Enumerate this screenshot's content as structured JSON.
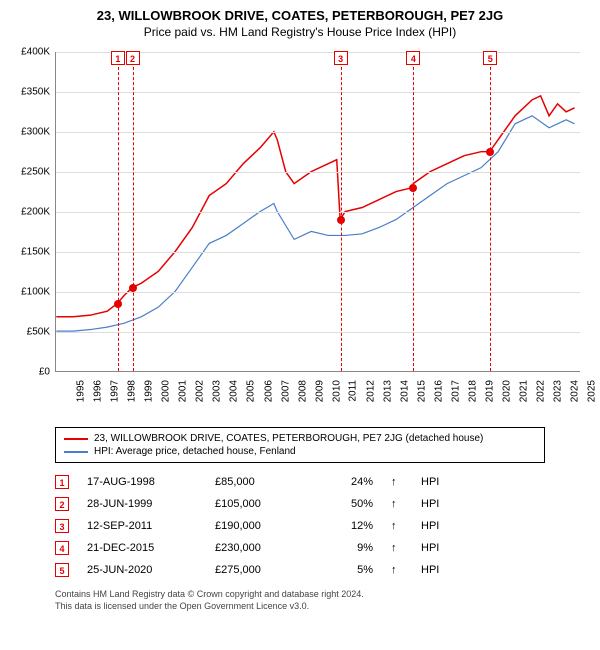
{
  "title": "23, WILLOWBROOK DRIVE, COATES, PETERBOROUGH, PE7 2JG",
  "subtitle": "Price paid vs. HM Land Registry's House Price Index (HPI)",
  "chart": {
    "type": "line",
    "xlim": [
      1995,
      2025.8
    ],
    "ylim": [
      0,
      400000
    ],
    "ytick_step": 50000,
    "yticks_fmt": [
      "£0",
      "£50K",
      "£100K",
      "£150K",
      "£200K",
      "£250K",
      "£300K",
      "£350K",
      "£400K"
    ],
    "xticks": [
      1995,
      1996,
      1997,
      1998,
      1999,
      2000,
      2001,
      2002,
      2003,
      2004,
      2005,
      2006,
      2007,
      2008,
      2009,
      2010,
      2011,
      2012,
      2013,
      2014,
      2015,
      2016,
      2017,
      2018,
      2019,
      2020,
      2021,
      2022,
      2023,
      2024,
      2025
    ],
    "background_color": "#ffffff",
    "grid_color": "#dddddd",
    "series": [
      {
        "name": "23, WILLOWBROOK DRIVE, COATES, PETERBOROUGH, PE7 2JG (detached house)",
        "color": "#e60000",
        "width": 1.5,
        "data": [
          [
            1995,
            68000
          ],
          [
            1996,
            68000
          ],
          [
            1997,
            70000
          ],
          [
            1998,
            75000
          ],
          [
            1998.6,
            85000
          ],
          [
            1999,
            95000
          ],
          [
            1999.5,
            105000
          ],
          [
            2000,
            110000
          ],
          [
            2001,
            125000
          ],
          [
            2002,
            150000
          ],
          [
            2003,
            180000
          ],
          [
            2004,
            220000
          ],
          [
            2005,
            235000
          ],
          [
            2006,
            260000
          ],
          [
            2007,
            280000
          ],
          [
            2007.8,
            300000
          ],
          [
            2008,
            290000
          ],
          [
            2008.5,
            250000
          ],
          [
            2009,
            235000
          ],
          [
            2010,
            250000
          ],
          [
            2011,
            260000
          ],
          [
            2011.5,
            265000
          ],
          [
            2011.7,
            190000
          ],
          [
            2012,
            200000
          ],
          [
            2013,
            205000
          ],
          [
            2014,
            215000
          ],
          [
            2015,
            225000
          ],
          [
            2015.97,
            230000
          ],
          [
            2016,
            235000
          ],
          [
            2017,
            250000
          ],
          [
            2018,
            260000
          ],
          [
            2019,
            270000
          ],
          [
            2020,
            275000
          ],
          [
            2020.5,
            275000
          ],
          [
            2021,
            290000
          ],
          [
            2022,
            320000
          ],
          [
            2023,
            340000
          ],
          [
            2023.5,
            345000
          ],
          [
            2024,
            320000
          ],
          [
            2024.5,
            335000
          ],
          [
            2025,
            325000
          ],
          [
            2025.5,
            330000
          ]
        ]
      },
      {
        "name": "HPI: Average price, detached house, Fenland",
        "color": "#4a7ec8",
        "width": 1.2,
        "data": [
          [
            1995,
            50000
          ],
          [
            1996,
            50000
          ],
          [
            1997,
            52000
          ],
          [
            1998,
            55000
          ],
          [
            1999,
            60000
          ],
          [
            2000,
            68000
          ],
          [
            2001,
            80000
          ],
          [
            2002,
            100000
          ],
          [
            2003,
            130000
          ],
          [
            2004,
            160000
          ],
          [
            2005,
            170000
          ],
          [
            2006,
            185000
          ],
          [
            2007,
            200000
          ],
          [
            2007.8,
            210000
          ],
          [
            2008,
            200000
          ],
          [
            2009,
            165000
          ],
          [
            2010,
            175000
          ],
          [
            2011,
            170000
          ],
          [
            2012,
            170000
          ],
          [
            2013,
            172000
          ],
          [
            2014,
            180000
          ],
          [
            2015,
            190000
          ],
          [
            2016,
            205000
          ],
          [
            2017,
            220000
          ],
          [
            2018,
            235000
          ],
          [
            2019,
            245000
          ],
          [
            2020,
            255000
          ],
          [
            2021,
            275000
          ],
          [
            2022,
            310000
          ],
          [
            2023,
            320000
          ],
          [
            2024,
            305000
          ],
          [
            2025,
            315000
          ],
          [
            2025.5,
            310000
          ]
        ]
      }
    ],
    "markers": [
      {
        "n": "1",
        "x": 1998.63,
        "y": 85000,
        "color": "#e60000"
      },
      {
        "n": "2",
        "x": 1999.49,
        "y": 105000,
        "color": "#e60000"
      },
      {
        "n": "3",
        "x": 2011.7,
        "y": 190000,
        "color": "#e60000"
      },
      {
        "n": "4",
        "x": 2015.97,
        "y": 230000,
        "color": "#e60000"
      },
      {
        "n": "5",
        "x": 2020.48,
        "y": 275000,
        "color": "#e60000"
      }
    ]
  },
  "legend": {
    "rows": [
      {
        "color": "#e60000",
        "label": "23, WILLOWBROOK DRIVE, COATES, PETERBOROUGH, PE7 2JG (detached house)"
      },
      {
        "color": "#4a7ec8",
        "label": "HPI: Average price, detached house, Fenland"
      }
    ]
  },
  "table": {
    "rows": [
      {
        "n": "1",
        "color": "#e60000",
        "date": "17-AUG-1998",
        "price": "£85,000",
        "pct": "24%",
        "arrow": "↑",
        "suffix": "HPI"
      },
      {
        "n": "2",
        "color": "#e60000",
        "date": "28-JUN-1999",
        "price": "£105,000",
        "pct": "50%",
        "arrow": "↑",
        "suffix": "HPI"
      },
      {
        "n": "3",
        "color": "#e60000",
        "date": "12-SEP-2011",
        "price": "£190,000",
        "pct": "12%",
        "arrow": "↑",
        "suffix": "HPI"
      },
      {
        "n": "4",
        "color": "#e60000",
        "date": "21-DEC-2015",
        "price": "£230,000",
        "pct": "9%",
        "arrow": "↑",
        "suffix": "HPI"
      },
      {
        "n": "5",
        "color": "#e60000",
        "date": "25-JUN-2020",
        "price": "£275,000",
        "pct": "5%",
        "arrow": "↑",
        "suffix": "HPI"
      }
    ]
  },
  "footer": {
    "line1": "Contains HM Land Registry data © Crown copyright and database right 2024.",
    "line2": "This data is licensed under the Open Government Licence v3.0."
  }
}
